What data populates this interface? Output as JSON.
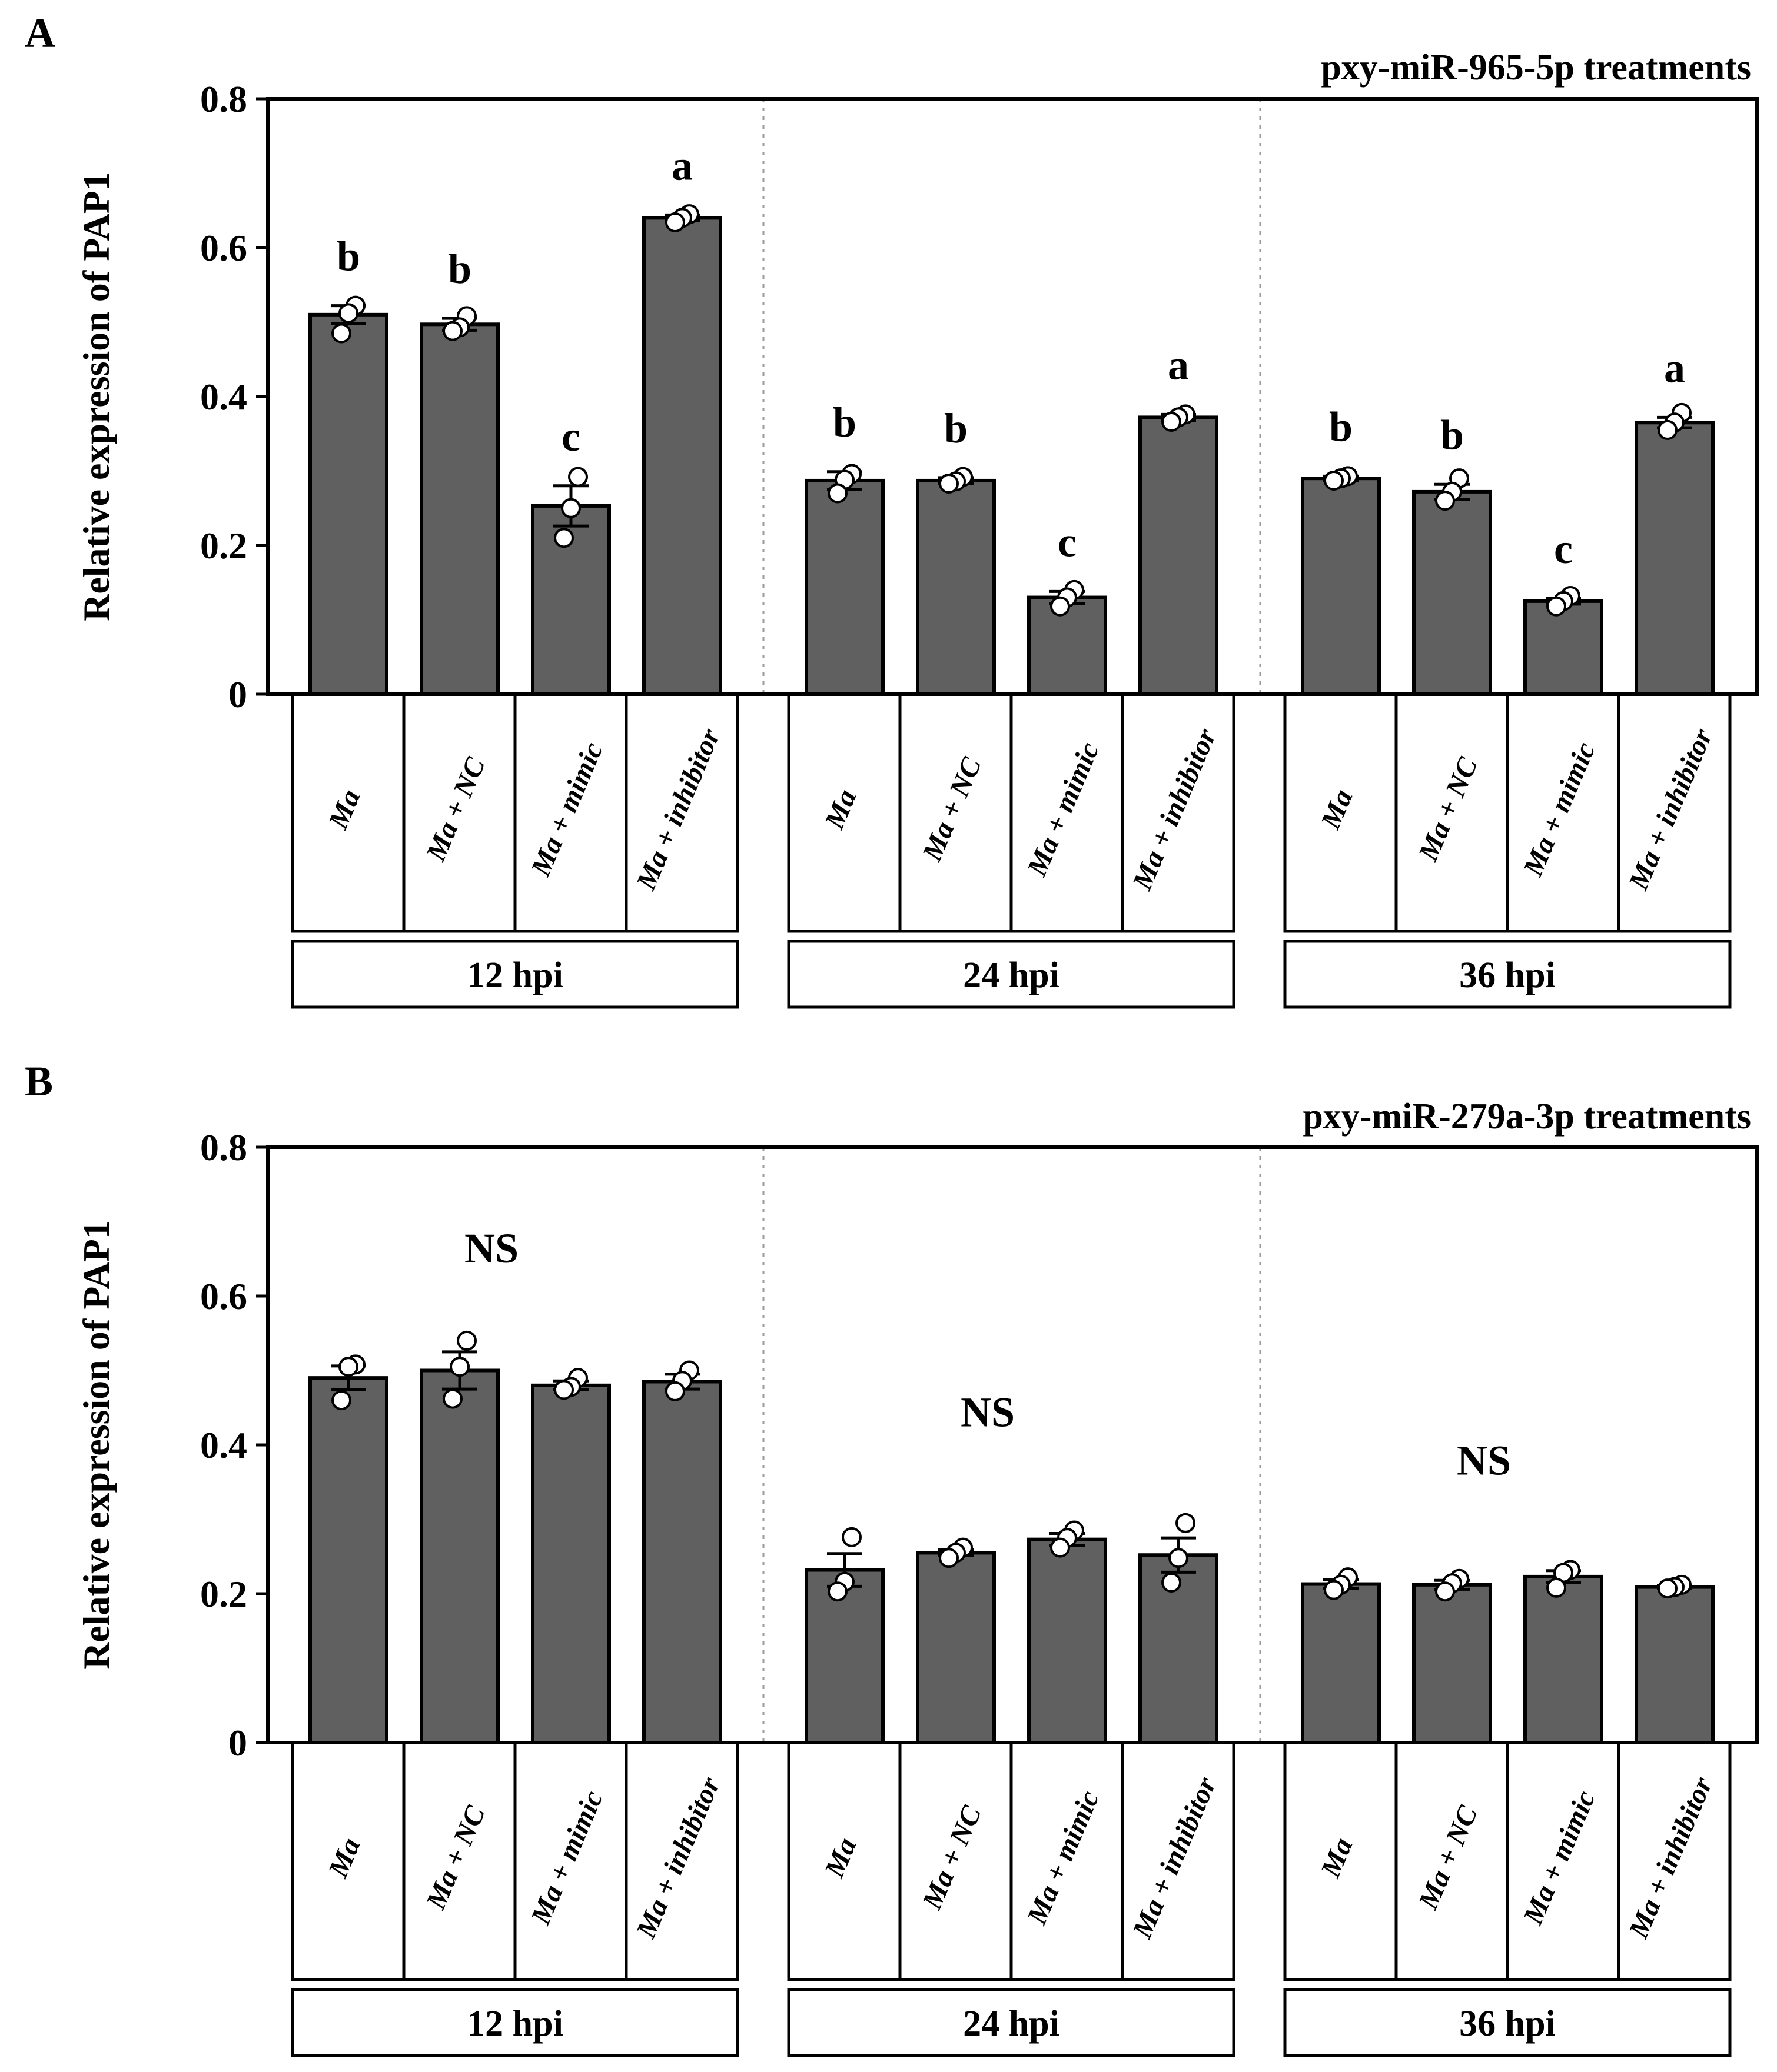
{
  "figure": {
    "colors": {
      "bar": "#5f605f",
      "stroke": "#000000",
      "point": "#ffffff",
      "divider": "#9a9a9a"
    }
  },
  "chart_data": [
    {
      "panel_label": "A",
      "type": "bar",
      "title": "pxy-miR-965-5p treatments",
      "ylabel": "Relative expression of PAP1",
      "ylim": [
        0,
        0.8
      ],
      "yticks": [
        {
          "value": 0,
          "label": "0"
        },
        {
          "value": 0.2,
          "label": "0.2"
        },
        {
          "value": 0.4,
          "label": "0.4"
        },
        {
          "value": 0.6,
          "label": "0.6"
        },
        {
          "value": 0.8,
          "label": "0.8"
        }
      ],
      "groups": [
        {
          "label": "12 hpi",
          "bars": [
            {
              "category": "Ma",
              "value": 0.51,
              "sem": 0.012,
              "points": [
                0.522,
                0.512,
                0.485
              ],
              "letter": "b"
            },
            {
              "category": "Ma + NC",
              "value": 0.497,
              "sem": 0.008,
              "points": [
                0.508,
                0.493,
                0.488
              ],
              "letter": "b"
            },
            {
              "category": "Ma + mimic",
              "value": 0.253,
              "sem": 0.027,
              "points": [
                0.292,
                0.25,
                0.21
              ],
              "letter": "c"
            },
            {
              "category": "Ma + inhibitor",
              "value": 0.64,
              "sem": 0.004,
              "points": [
                0.645,
                0.64,
                0.634
              ],
              "letter": "a"
            }
          ]
        },
        {
          "label": "24 hpi",
          "bars": [
            {
              "category": "Ma",
              "value": 0.287,
              "sem": 0.012,
              "points": [
                0.296,
                0.288,
                0.27
              ],
              "letter": "b"
            },
            {
              "category": "Ma + NC",
              "value": 0.287,
              "sem": 0.004,
              "points": [
                0.292,
                0.286,
                0.283
              ],
              "letter": "b"
            },
            {
              "category": "Ma + mimic",
              "value": 0.13,
              "sem": 0.008,
              "points": [
                0.14,
                0.13,
                0.118
              ],
              "letter": "c"
            },
            {
              "category": "Ma + inhibitor",
              "value": 0.372,
              "sem": 0.004,
              "points": [
                0.376,
                0.372,
                0.366
              ],
              "letter": "a"
            }
          ]
        },
        {
          "label": "36 hpi",
          "bars": [
            {
              "category": "Ma",
              "value": 0.29,
              "sem": 0.003,
              "points": [
                0.293,
                0.29,
                0.287
              ],
              "letter": "b"
            },
            {
              "category": "Ma + NC",
              "value": 0.272,
              "sem": 0.01,
              "points": [
                0.29,
                0.272,
                0.26
              ],
              "letter": "b"
            },
            {
              "category": "Ma + mimic",
              "value": 0.125,
              "sem": 0.004,
              "points": [
                0.132,
                0.125,
                0.118
              ],
              "letter": "c"
            },
            {
              "category": "Ma + inhibitor",
              "value": 0.365,
              "sem": 0.007,
              "points": [
                0.378,
                0.365,
                0.355
              ],
              "letter": "a"
            }
          ]
        }
      ]
    },
    {
      "panel_label": "B",
      "type": "bar",
      "title": "pxy-miR-279a-3p treatments",
      "ylabel": "Relative expression of PAP1",
      "ylim": [
        0,
        0.8
      ],
      "yticks": [
        {
          "value": 0,
          "label": "0"
        },
        {
          "value": 0.2,
          "label": "0.2"
        },
        {
          "value": 0.4,
          "label": "0.4"
        },
        {
          "value": 0.6,
          "label": "0.6"
        },
        {
          "value": 0.8,
          "label": "0.8"
        }
      ],
      "groups": [
        {
          "label": "12 hpi",
          "significance": "NS",
          "significance_value": 0.645,
          "bars": [
            {
              "category": "Ma",
              "value": 0.49,
              "sem": 0.016,
              "points": [
                0.508,
                0.505,
                0.46
              ]
            },
            {
              "category": "Ma + NC",
              "value": 0.5,
              "sem": 0.025,
              "points": [
                0.54,
                0.505,
                0.462
              ]
            },
            {
              "category": "Ma + mimic",
              "value": 0.48,
              "sem": 0.006,
              "points": [
                0.49,
                0.478,
                0.474
              ]
            },
            {
              "category": "Ma + inhibitor",
              "value": 0.485,
              "sem": 0.01,
              "points": [
                0.5,
                0.486,
                0.472
              ]
            }
          ]
        },
        {
          "label": "24 hpi",
          "significance": "NS",
          "significance_value": 0.425,
          "bars": [
            {
              "category": "Ma",
              "value": 0.232,
              "sem": 0.022,
              "points": [
                0.276,
                0.216,
                0.203
              ]
            },
            {
              "category": "Ma + NC",
              "value": 0.255,
              "sem": 0.004,
              "points": [
                0.262,
                0.255,
                0.248
              ]
            },
            {
              "category": "Ma + mimic",
              "value": 0.273,
              "sem": 0.008,
              "points": [
                0.285,
                0.275,
                0.262
              ]
            },
            {
              "category": "Ma + inhibitor",
              "value": 0.252,
              "sem": 0.023,
              "points": [
                0.295,
                0.248,
                0.215
              ]
            }
          ]
        },
        {
          "label": "36 hpi",
          "significance": "NS",
          "significance_value": 0.36,
          "bars": [
            {
              "category": "Ma",
              "value": 0.213,
              "sem": 0.006,
              "points": [
                0.222,
                0.212,
                0.205
              ]
            },
            {
              "category": "Ma + NC",
              "value": 0.212,
              "sem": 0.006,
              "points": [
                0.22,
                0.214,
                0.203
              ]
            },
            {
              "category": "Ma + mimic",
              "value": 0.223,
              "sem": 0.008,
              "points": [
                0.232,
                0.228,
                0.208
              ]
            },
            {
              "category": "Ma + inhibitor",
              "value": 0.209,
              "sem": 0.002,
              "points": [
                0.212,
                0.209,
                0.207
              ]
            }
          ]
        }
      ]
    }
  ]
}
